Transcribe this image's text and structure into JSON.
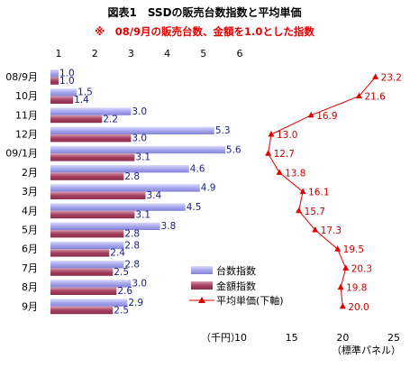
{
  "chart_data": {
    "type": "bar",
    "orientation": "horizontal",
    "title": "図表1　SSDの販売台数指数と平均単価",
    "subtitle": "※　08/9月の販売台数、金額を1.0とした指数",
    "categories": [
      "08/9月",
      "10月",
      "11月",
      "12月",
      "09/1月",
      "2月",
      "3月",
      "4月",
      "5月",
      "6月",
      "7月",
      "8月",
      "9月"
    ],
    "series": [
      {
        "name": "台数指数",
        "values": [
          1.0,
          1.5,
          3.0,
          5.3,
          5.6,
          4.6,
          4.9,
          4.5,
          3.8,
          2.8,
          2.8,
          3.0,
          2.9
        ],
        "color": "#a7a7ee"
      },
      {
        "name": "金額指数",
        "values": [
          1.0,
          1.4,
          2.2,
          3.0,
          3.1,
          2.8,
          3.4,
          3.1,
          2.8,
          2.4,
          2.5,
          2.6,
          2.5
        ],
        "color": "#a44060"
      },
      {
        "name": "平均単価(下軸)",
        "values": [
          23.2,
          21.6,
          16.9,
          13.0,
          12.7,
          13.8,
          16.1,
          15.7,
          17.3,
          19.5,
          20.3,
          19.8,
          20.0
        ],
        "color": "#e00000"
      }
    ],
    "top_axis": {
      "ticks": [
        1,
        2,
        3,
        4,
        5,
        6
      ],
      "range": [
        1,
        6
      ]
    },
    "bottom_axis": {
      "unit_left": "（千円）",
      "unit_right": "（標準パネル）",
      "ticks": [
        10,
        15,
        20,
        25
      ],
      "range": [
        10,
        25
      ]
    },
    "grid": false,
    "legend_position": "bottom-right"
  }
}
